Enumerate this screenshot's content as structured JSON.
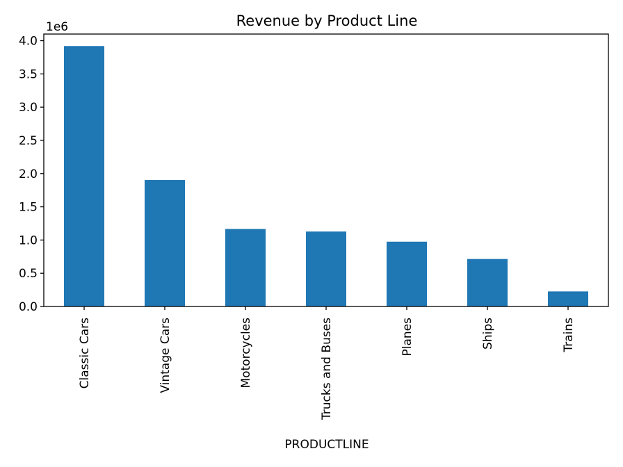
{
  "chart_data": {
    "type": "bar",
    "title": "Revenue by Product Line",
    "xlabel": "PRODUCTLINE",
    "ylabel": "",
    "y_offset_label": "1e6",
    "y_scale": 1000000,
    "categories": [
      "Classic Cars",
      "Vintage Cars",
      "Motorcycles",
      "Trucks and Buses",
      "Planes",
      "Ships",
      "Trains"
    ],
    "values": [
      3919616,
      1903151,
      1166388,
      1127789,
      975004,
      714437,
      226243
    ],
    "ylim": [
      0,
      4100000
    ],
    "yticks": [
      0,
      500000,
      1000000,
      1500000,
      2000000,
      2500000,
      3000000,
      3500000,
      4000000
    ],
    "ytick_labels": [
      "0.0",
      "0.5",
      "1.0",
      "1.5",
      "2.0",
      "2.5",
      "3.0",
      "3.5",
      "4.0"
    ],
    "bar_color": "#1f77b4",
    "grid": false,
    "legend": false
  }
}
